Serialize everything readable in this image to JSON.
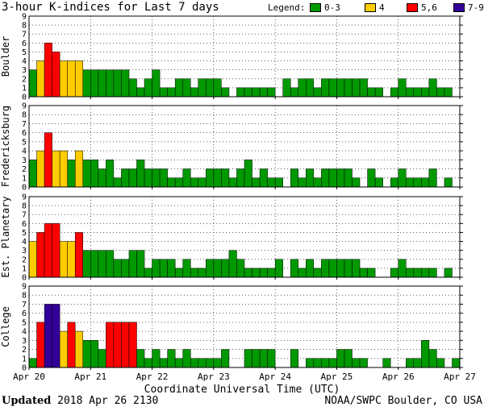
{
  "header": {
    "title": "3-hour K-indices for Last 7 days",
    "legend_title": "Legend:",
    "legend": [
      {
        "label": "0-3",
        "color": "#009900"
      },
      {
        "label": "4",
        "color": "#ffcc00"
      },
      {
        "label": "5,6",
        "color": "#ff0000"
      },
      {
        "label": "7-9",
        "color": "#330099"
      }
    ]
  },
  "footer": {
    "updated_label": "Updated",
    "updated_time": "2018 Apr 26 2130",
    "source": "NOAA/SWPC Boulder, CO USA"
  },
  "chart_data": {
    "type": "bar",
    "xlabel": "Coordinate Universal Time (UTC)",
    "x_ticks": [
      "Apr 20",
      "Apr 21",
      "Apr 22",
      "Apr 23",
      "Apr 24",
      "Apr 25",
      "Apr 26",
      "Apr 27"
    ],
    "bars_per_day": 8,
    "ylim": [
      0,
      9
    ],
    "y_ticks": [
      0,
      1,
      2,
      3,
      4,
      5,
      6,
      7,
      8,
      9
    ],
    "series": [
      {
        "name": "Boulder",
        "values": [
          3,
          4,
          6,
          5,
          4,
          4,
          4,
          3,
          3,
          3,
          3,
          3,
          3,
          2,
          1,
          2,
          3,
          1,
          1,
          2,
          2,
          1,
          2,
          2,
          2,
          1,
          0,
          1,
          1,
          1,
          1,
          1,
          0,
          2,
          1,
          2,
          2,
          1,
          2,
          2,
          2,
          2,
          2,
          2,
          1,
          1,
          0,
          1,
          2,
          1,
          1,
          1,
          2,
          1,
          1,
          0
        ]
      },
      {
        "name": "Fredericksburg",
        "values": [
          3,
          4,
          6,
          4,
          4,
          3,
          4,
          3,
          3,
          2,
          3,
          1,
          2,
          2,
          3,
          2,
          2,
          2,
          1,
          1,
          2,
          1,
          1,
          2,
          2,
          2,
          1,
          2,
          3,
          1,
          2,
          1,
          1,
          0,
          2,
          1,
          2,
          1,
          2,
          2,
          2,
          2,
          1,
          0,
          2,
          1,
          0,
          1,
          2,
          1,
          1,
          1,
          2,
          0,
          1,
          0
        ]
      },
      {
        "name": "Est. Planetary",
        "values": [
          4,
          5,
          6,
          6,
          4,
          4,
          5,
          3,
          3,
          3,
          3,
          2,
          2,
          3,
          3,
          1,
          2,
          2,
          2,
          1,
          2,
          1,
          1,
          2,
          2,
          2,
          3,
          2,
          1,
          1,
          1,
          1,
          2,
          0,
          2,
          1,
          2,
          1,
          2,
          2,
          2,
          2,
          2,
          1,
          1,
          0,
          0,
          1,
          2,
          1,
          1,
          1,
          1,
          0,
          1,
          0
        ]
      },
      {
        "name": "College",
        "values": [
          1,
          5,
          7,
          7,
          4,
          5,
          4,
          3,
          3,
          2,
          5,
          5,
          5,
          5,
          2,
          1,
          2,
          1,
          2,
          1,
          2,
          1,
          1,
          1,
          1,
          2,
          0,
          0,
          2,
          2,
          2,
          2,
          0,
          0,
          2,
          0,
          1,
          1,
          1,
          1,
          2,
          2,
          1,
          1,
          0,
          0,
          1,
          0,
          0,
          1,
          1,
          3,
          2,
          1,
          0,
          1
        ]
      }
    ]
  }
}
